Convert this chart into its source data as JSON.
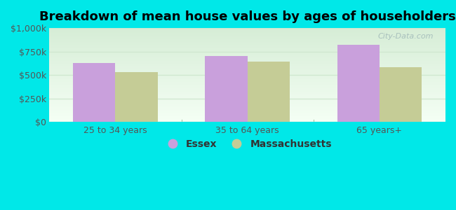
{
  "title": "Breakdown of mean house values by ages of householders",
  "categories": [
    "25 to 34 years",
    "35 to 64 years",
    "65 years+"
  ],
  "essex_values": [
    630000,
    700000,
    820000
  ],
  "mass_values": [
    530000,
    640000,
    580000
  ],
  "essex_color": "#c9a0dc",
  "mass_color": "#c5cc96",
  "background_outer": "#00e8e8",
  "background_inner_top": "#d8edd8",
  "background_inner_bottom": "#f0faf0",
  "ylim": [
    0,
    1000000
  ],
  "yticks": [
    0,
    250000,
    500000,
    750000,
    1000000
  ],
  "ytick_labels": [
    "$0",
    "$250k",
    "$500k",
    "$750k",
    "$1,000k"
  ],
  "legend_labels": [
    "Essex",
    "Massachusetts"
  ],
  "bar_width": 0.32,
  "title_fontsize": 13,
  "legend_fontsize": 10,
  "tick_fontsize": 9,
  "watermark": "City-Data.com",
  "grid_color": "#d0e8d0",
  "divider_color": "#a0c8a0"
}
